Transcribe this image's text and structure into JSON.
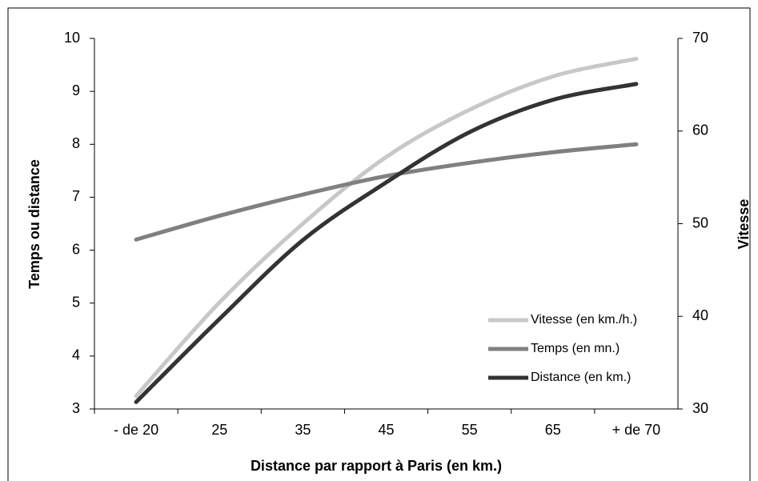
{
  "chart_data": {
    "type": "line",
    "xlabel": "Distance par rapport à Paris (en km.)",
    "ylabel": "Temps ou distance",
    "y2label": "Vitesse",
    "categories": [
      "- de 20",
      "25",
      "35",
      "45",
      "55",
      "65",
      "+ de 70"
    ],
    "series": [
      {
        "name": "Vitesse (en km./h.)",
        "color": "#c8c8c8",
        "axis": "y2",
        "values": [
          31.4,
          41.5,
          50,
          57.2,
          62.3,
          65.9,
          67.8
        ]
      },
      {
        "name": "Temps (en mn.)",
        "color": "#808080",
        "values": [
          6.2,
          6.65,
          7.05,
          7.4,
          7.65,
          7.85,
          8.0
        ]
      },
      {
        "name": "Distance (en km.)",
        "color": "#333333",
        "values": [
          3.13,
          4.7,
          6.19,
          7.28,
          8.23,
          8.84,
          9.14
        ]
      }
    ],
    "ylim": [
      3,
      10
    ],
    "yticks": [
      3,
      4,
      5,
      6,
      7,
      8,
      9,
      10
    ],
    "y2lim": [
      30,
      70
    ],
    "y2ticks": [
      30,
      40,
      50,
      60,
      70
    ],
    "legend": "lower right"
  }
}
